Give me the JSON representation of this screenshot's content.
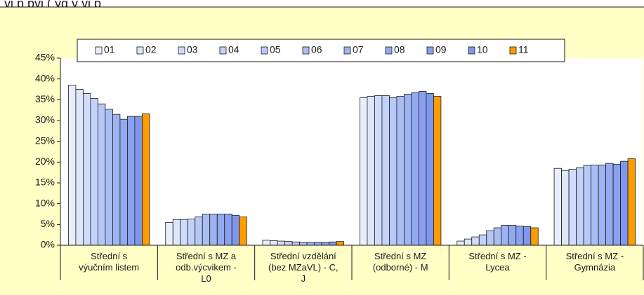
{
  "header_fragment": "ýj p                    pyj                   (            yg y                   yj            p",
  "colors": {
    "background_panel": "#ffffc6",
    "plot_area": "#ffffff",
    "bar_stroke": "#1a1a1a",
    "series_fills": [
      "#e8eefb",
      "#dde6fb",
      "#d0dcfa",
      "#c3d2f8",
      "#b6c8f6",
      "#aabef4",
      "#9eb4f2",
      "#93aaf0",
      "#88a0ee",
      "#7e97ec",
      "#ff9c00"
    ]
  },
  "chart_data": {
    "type": "bar",
    "title": "",
    "xlabel": "",
    "ylabel": "",
    "ylim": [
      0,
      45
    ],
    "y_ticks": [
      0,
      5,
      10,
      15,
      20,
      25,
      30,
      35,
      40,
      45
    ],
    "y_tick_labels": [
      "0%",
      "5%",
      "10%",
      "15%",
      "20%",
      "25%",
      "30%",
      "35%",
      "40%",
      "45%"
    ],
    "grid": false,
    "legend_position": "top",
    "categories": [
      "Střední s výučním listem",
      "Střední s MZ a odb.výcvikem - L0",
      "Střední vzdělání (bez MZaVL) - C, J",
      "Střední s MZ (odborné) - M",
      "Střední s MZ - Lycea",
      "Střední s MZ - Gymnázia"
    ],
    "category_label_lines": [
      [
        "Střední s",
        "výučním listem"
      ],
      [
        "Střední s MZ a",
        "odb.výcvikem -",
        "L0"
      ],
      [
        "Střední vzdělání",
        "(bez MZaVL) - C,",
        "J"
      ],
      [
        "Střední s MZ",
        "(odborné) - M"
      ],
      [
        "Střední s MZ -",
        "Lycea"
      ],
      [
        "Střední s MZ -",
        "Gymnázia"
      ]
    ],
    "series": [
      {
        "name": "01",
        "values": [
          38.5,
          5.5,
          1.2,
          35.5,
          1.0,
          18.5
        ]
      },
      {
        "name": "02",
        "values": [
          37.5,
          6.2,
          1.1,
          35.8,
          1.5,
          18.0
        ]
      },
      {
        "name": "03",
        "values": [
          36.5,
          6.2,
          1.0,
          36.0,
          2.0,
          18.3
        ]
      },
      {
        "name": "04",
        "values": [
          35.3,
          6.3,
          0.9,
          36.0,
          2.5,
          18.6
        ]
      },
      {
        "name": "05",
        "values": [
          34.0,
          6.8,
          0.8,
          35.5,
          3.5,
          19.2
        ]
      },
      {
        "name": "06",
        "values": [
          32.7,
          7.5,
          0.7,
          35.8,
          4.2,
          19.3
        ]
      },
      {
        "name": "07",
        "values": [
          31.5,
          7.5,
          0.7,
          36.3,
          4.8,
          19.3
        ]
      },
      {
        "name": "08",
        "values": [
          30.3,
          7.5,
          0.7,
          36.7,
          4.8,
          19.7
        ]
      },
      {
        "name": "09",
        "values": [
          31.0,
          7.5,
          0.7,
          37.0,
          4.6,
          19.5
        ]
      },
      {
        "name": "10",
        "values": [
          31.0,
          7.2,
          0.8,
          36.5,
          4.5,
          20.2
        ]
      },
      {
        "name": "11",
        "values": [
          31.6,
          6.8,
          0.9,
          35.8,
          4.2,
          20.8
        ]
      }
    ]
  }
}
